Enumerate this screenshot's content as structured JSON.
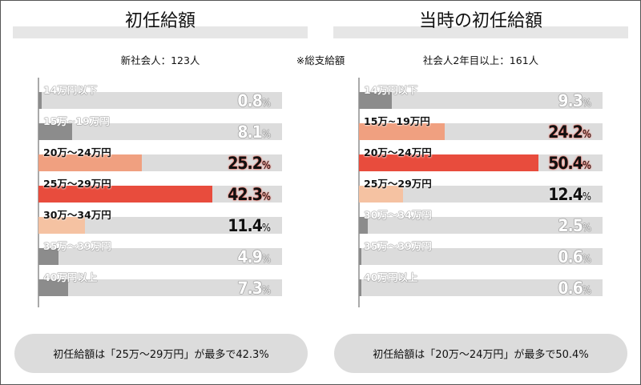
{
  "note": "※総支給額",
  "colors": {
    "gray": "#8c8c8c",
    "salmon": "#f0a080",
    "red": "#e84c3d",
    "peach": "#f5c2a2",
    "track": "#dcdcdc"
  },
  "chart_data": [
    {
      "type": "bar",
      "orientation": "horizontal",
      "title": "初任給額",
      "subtitle": "新社会人：123人",
      "categories": [
        "14万円以下",
        "15万~19万円",
        "20万～24万円",
        "25万～29万円",
        "30万～34万円",
        "35万～39万円",
        "40万円以上"
      ],
      "values": [
        0.8,
        8.1,
        25.2,
        42.3,
        11.4,
        4.9,
        7.3
      ],
      "value_labels": [
        "0.8",
        "8.1",
        "25.2",
        "42.3",
        "11.4",
        "4.9",
        "7.3"
      ],
      "unit": "%",
      "bar_colors": [
        "gray",
        "gray",
        "salmon",
        "red",
        "peach",
        "gray",
        "gray"
      ],
      "summary": "初任給額は「25万～29万円」が最多で42.3%"
    },
    {
      "type": "bar",
      "orientation": "horizontal",
      "title": "当時の初任給額",
      "subtitle": "社会人2年目以上：161人",
      "categories": [
        "14万円以下",
        "15万~19万円",
        "20万～24万円",
        "25万～29万円",
        "30万～34万円",
        "35万～39万円",
        "40万円以上"
      ],
      "values": [
        9.3,
        24.2,
        50.4,
        12.4,
        2.5,
        0.6,
        0.6
      ],
      "value_labels": [
        "9.3",
        "24.2",
        "50.4",
        "12.4",
        "2.5",
        "0.6",
        "0.6"
      ],
      "unit": "%",
      "bar_colors": [
        "gray",
        "salmon",
        "red",
        "peach",
        "gray",
        "gray",
        "gray"
      ],
      "summary": "初任給額は「20万～24万円」が最多で50.4%"
    }
  ]
}
